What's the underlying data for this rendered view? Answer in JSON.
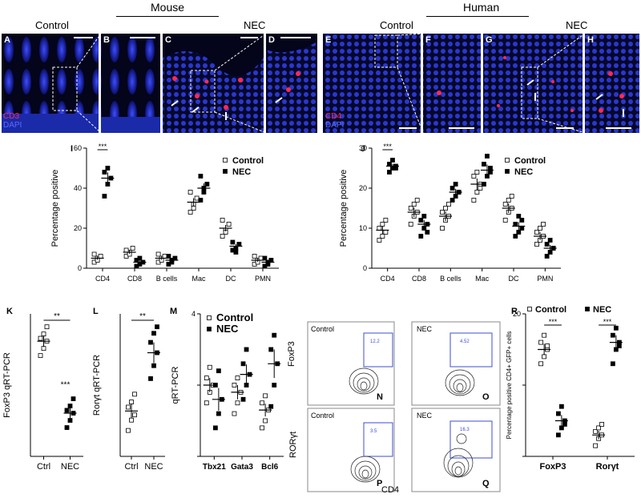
{
  "header": {
    "mouse": "Mouse",
    "human": "Human",
    "mouse_control": "Control",
    "mouse_nec": "NEC",
    "human_control": "Control",
    "human_nec": "NEC"
  },
  "micro": {
    "panels": [
      "A",
      "B",
      "C",
      "D",
      "E",
      "F",
      "G",
      "H"
    ],
    "mouse_stain": [
      "CD3",
      "DAPI"
    ],
    "human_stain": [
      "CD4",
      "DAPI"
    ]
  },
  "colors": {
    "dapi": "#1a2ad6",
    "stain": "#ff2a55",
    "bg": "#04041a"
  },
  "chart_data": [
    {
      "id": "I",
      "type": "scatter",
      "ylabel": "Percentage positive",
      "ylim": [
        0,
        60
      ],
      "yticks": [
        0,
        20,
        40,
        60
      ],
      "categories": [
        "CD4",
        "CD8",
        "B cells",
        "Mac",
        "DC",
        "PMN"
      ],
      "legend": [
        "Control",
        "NEC"
      ],
      "series": [
        {
          "name": "Control",
          "means": [
            5,
            8,
            5,
            33,
            20,
            4
          ],
          "points": [
            [
              3,
              5,
              6,
              7,
              4
            ],
            [
              6,
              8,
              10,
              9,
              7
            ],
            [
              3,
              5,
              6,
              7,
              4
            ],
            [
              28,
              32,
              35,
              38,
              30
            ],
            [
              16,
              19,
              22,
              24,
              18
            ],
            [
              2,
              4,
              5,
              6,
              3
            ]
          ]
        },
        {
          "name": "NEC",
          "means": [
            45,
            3,
            4,
            40,
            11,
            3
          ],
          "points": [
            [
              36,
              42,
              45,
              48,
              50
            ],
            [
              1,
              2,
              3,
              4,
              5
            ],
            [
              2,
              3,
              5,
              6,
              4
            ],
            [
              34,
              38,
              42,
              46,
              40
            ],
            [
              9,
              10,
              12,
              13,
              8
            ],
            [
              1,
              2,
              4,
              5,
              3
            ]
          ]
        }
      ],
      "sig": [
        {
          "category": "CD4",
          "label": "***"
        }
      ]
    },
    {
      "id": "J",
      "type": "scatter",
      "ylabel": "Percentage positive",
      "ylim": [
        0,
        30
      ],
      "yticks": [
        0,
        10,
        20,
        30
      ],
      "categories": [
        "CD4",
        "CD8",
        "B cells",
        "Mac",
        "DC",
        "PMN"
      ],
      "legend": [
        "Control",
        "NEC"
      ],
      "series": [
        {
          "name": "Control",
          "means": [
            9.5,
            14,
            13,
            21,
            15,
            8
          ],
          "points": [
            [
              7,
              8,
              9,
              10,
              11,
              12
            ],
            [
              11,
              13,
              14,
              15,
              16,
              17
            ],
            [
              10,
              12,
              13,
              14,
              15,
              16
            ],
            [
              17,
              19,
              21,
              23,
              24,
              20
            ],
            [
              12,
              14,
              15,
              16,
              17,
              18
            ],
            [
              6,
              7,
              8,
              9,
              10,
              11
            ]
          ]
        },
        {
          "name": "NEC",
          "means": [
            25.5,
            11,
            19,
            24.5,
            10.5,
            5
          ],
          "points": [
            [
              24,
              25,
              25.5,
              26,
              27,
              25
            ],
            [
              8,
              10,
              11,
              12,
              13,
              9
            ],
            [
              17,
              18,
              19,
              20,
              21,
              19
            ],
            [
              21,
              23,
              24,
              26,
              28,
              25
            ],
            [
              8,
              9,
              10,
              11,
              13,
              12
            ],
            [
              3,
              4,
              5,
              6,
              7,
              5
            ]
          ]
        }
      ],
      "sig": [
        {
          "category": "CD4",
          "label": "***"
        }
      ]
    },
    {
      "id": "K",
      "type": "scatter",
      "ylabel": "FoxP3 qRT-PCR",
      "categories": [
        "Ctrl",
        "NEC"
      ],
      "series": [
        {
          "name": "",
          "markers": [
            "open",
            "filled"
          ],
          "means": [
            0.8,
            0.3
          ],
          "points": [
            [
              0.7,
              0.75,
              0.8,
              0.82,
              0.85,
              0.9
            ],
            [
              0.2,
              0.25,
              0.3,
              0.32,
              0.35,
              0.4
            ]
          ]
        }
      ],
      "sig": [
        {
          "label": "**"
        },
        {
          "label": "***"
        }
      ]
    },
    {
      "id": "L",
      "type": "scatter",
      "ylabel": "Rorγt qRT-PCR",
      "categories": [
        "Ctrl",
        "NEC"
      ],
      "series": [
        {
          "name": "",
          "markers": [
            "open",
            "filled"
          ],
          "means": [
            0.35,
            0.8
          ],
          "points": [
            [
              0.2,
              0.28,
              0.32,
              0.38,
              0.42,
              0.48
            ],
            [
              0.6,
              0.7,
              0.8,
              0.88,
              0.95,
              1.0
            ]
          ]
        }
      ],
      "sig": [
        {
          "label": "**"
        }
      ]
    },
    {
      "id": "M",
      "type": "scatter",
      "ylabel": "qRT-PCR",
      "ylim": [
        0,
        4
      ],
      "yticks": [
        0,
        2,
        4
      ],
      "ytick_labels": [
        "",
        "",
        "4"
      ],
      "categories": [
        "Tbx21",
        "Gata3",
        "Bcl6"
      ],
      "legend": [
        "Control",
        "NEC"
      ],
      "series": [
        {
          "name": "Control",
          "means": [
            2.0,
            1.8,
            1.3
          ],
          "points": [
            [
              1.5,
              1.8,
              2.0,
              2.2,
              2.5
            ],
            [
              1.2,
              1.5,
              1.8,
              2.0,
              2.2
            ],
            [
              0.8,
              1.0,
              1.3,
              1.5,
              1.7
            ]
          ]
        },
        {
          "name": "NEC",
          "means": [
            1.6,
            2.3,
            2.6
          ],
          "points": [
            [
              0.8,
              1.2,
              1.6,
              2.0,
              2.4
            ],
            [
              1.6,
              2.0,
              2.3,
              2.6,
              3.0
            ],
            [
              1.4,
              2.0,
              2.6,
              3.0,
              3.4
            ]
          ]
        }
      ]
    },
    {
      "id": "R",
      "type": "scatter",
      "ylabel": "Percentage positive CD4+ GFP+ cells",
      "ylim": [
        0,
        20
      ],
      "yticks": [
        0,
        10,
        20
      ],
      "ytick_labels": [
        "",
        "",
        "20"
      ],
      "categories": [
        "FoxP3",
        "Rorγt"
      ],
      "legend": [
        "Control",
        "NEC"
      ],
      "series": [
        {
          "name": "Control",
          "means": [
            15,
            3
          ],
          "points": [
            [
              13,
              14,
              15,
              16,
              17,
              15.5
            ],
            [
              1.5,
              2.5,
              3,
              3.5,
              4,
              4.5
            ]
          ]
        },
        {
          "name": "NEC",
          "means": [
            5,
            16
          ],
          "points": [
            [
              3,
              4,
              5,
              6,
              7,
              4.5
            ],
            [
              13,
              15,
              16,
              17,
              18,
              15.5
            ]
          ]
        }
      ],
      "sig": [
        {
          "category": "FoxP3",
          "label": "***"
        },
        {
          "category": "Rorγt",
          "label": "***"
        }
      ]
    }
  ],
  "flow": {
    "xlabel": "CD4",
    "ylabel_top": "FoxP3",
    "ylabel_bottom": "RORγt",
    "panels": [
      {
        "id": "N",
        "title": "Control",
        "gate": "12.2"
      },
      {
        "id": "O",
        "title": "NEC",
        "gate": "4.52"
      },
      {
        "id": "P",
        "title": "Control",
        "gate": "3.5"
      },
      {
        "id": "Q",
        "title": "NEC",
        "gate": "16.3"
      }
    ]
  },
  "panel_letters": {
    "I": "I",
    "J": "J",
    "K": "K",
    "L": "L",
    "M": "M",
    "N": "N",
    "O": "O",
    "P": "P",
    "Q": "Q",
    "R": "R"
  }
}
